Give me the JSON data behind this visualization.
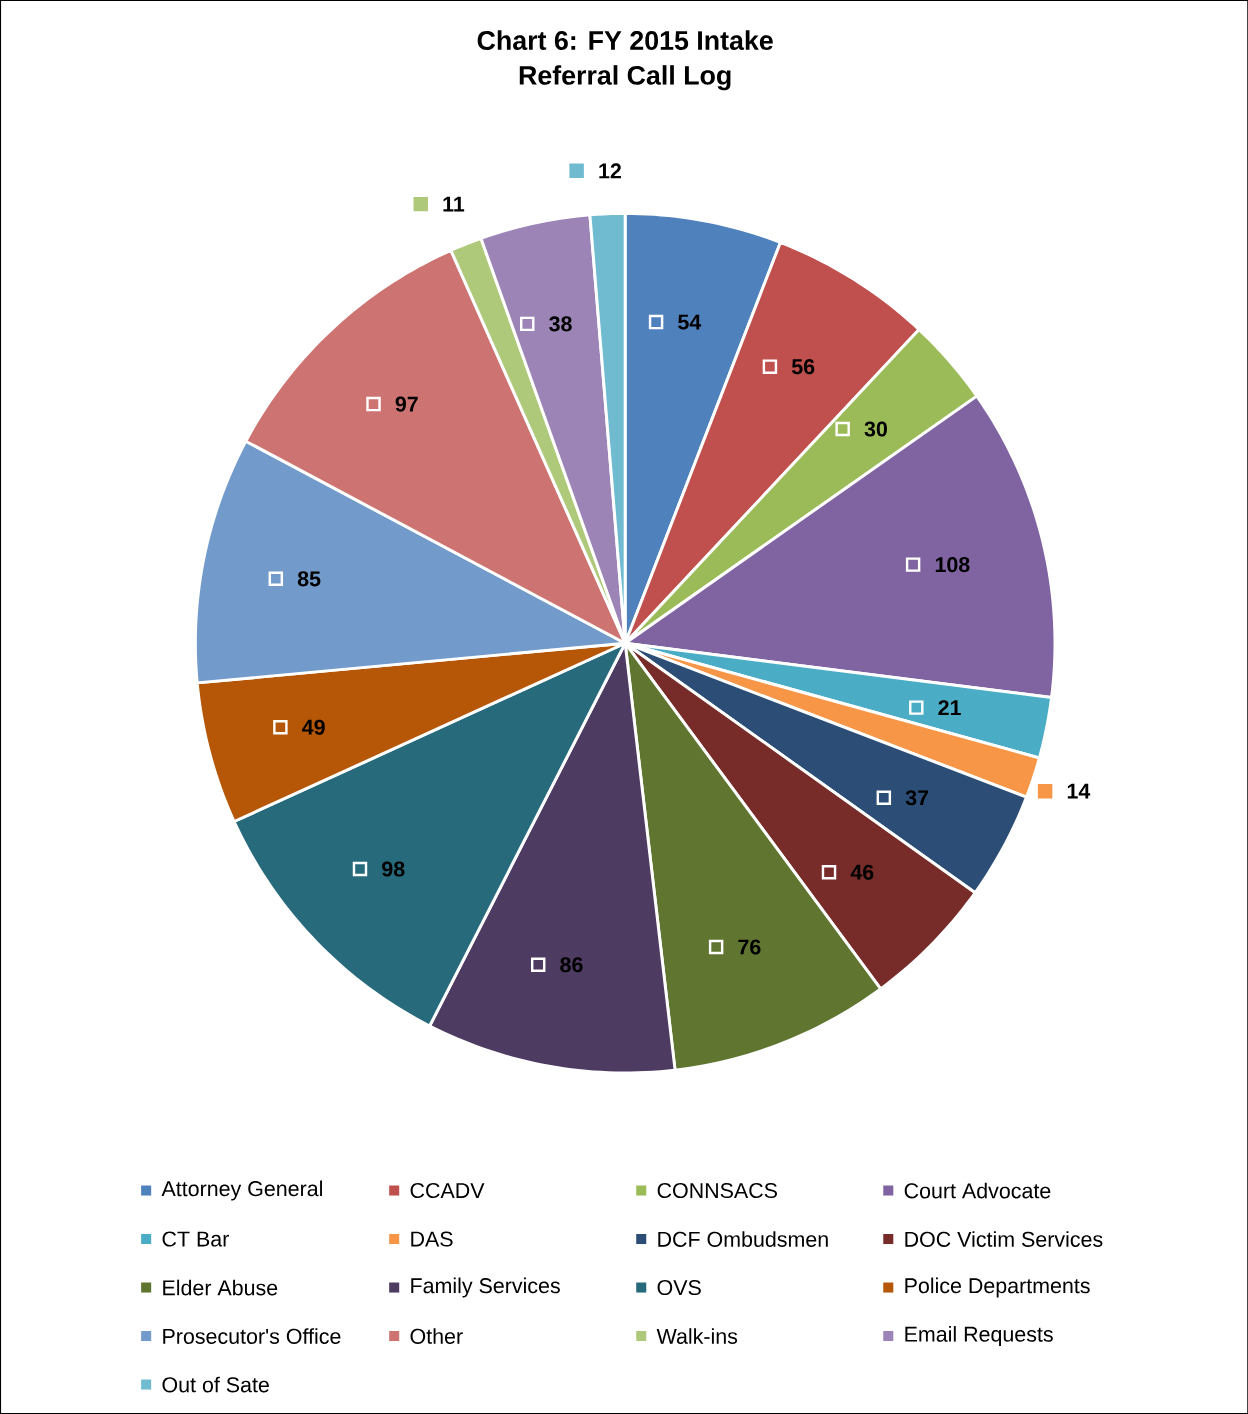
{
  "chart_data": {
    "type": "pie",
    "title": "Chart 6: FY 2015 Intake\nReferral Call Log",
    "categories": [
      "Attorney General",
      "CCADV",
      "CONNSACS",
      "Court Advocate",
      "CT Bar",
      "DAS",
      "DCF Ombudsmen",
      "DOC Victim Services",
      "Elder Abuse",
      "Family Services",
      "OVS",
      "Police Departments",
      "Prosecutor's Office",
      "Other",
      "Walk-ins",
      "Email Requests",
      "Out of Sate"
    ],
    "values": [
      54,
      56,
      30,
      108,
      21,
      14,
      37,
      46,
      76,
      86,
      98,
      49,
      85,
      97,
      11,
      38,
      12
    ],
    "colors": [
      "#4f81bd",
      "#c0504d",
      "#9bbb59",
      "#8064a2",
      "#4bacc6",
      "#f79646",
      "#2c4d75",
      "#772c2a",
      "#5f7530",
      "#4d3b62",
      "#276a7c",
      "#b65708",
      "#729aca",
      "#cd7371",
      "#afc97a",
      "#9c85b6",
      "#71bbd1"
    ],
    "data_labels": true,
    "legend": "bottom"
  }
}
